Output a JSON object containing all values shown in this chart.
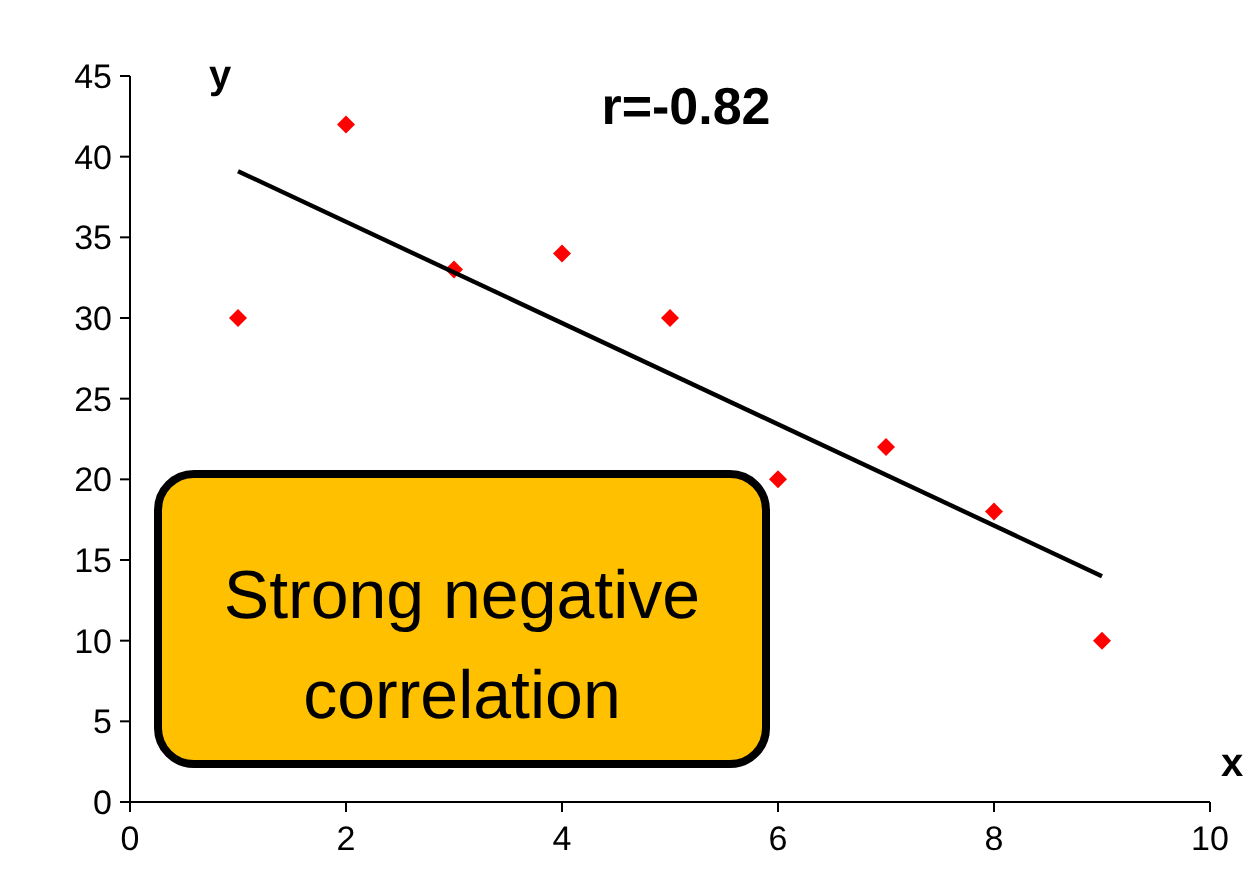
{
  "chart_data": {
    "type": "scatter",
    "xlabel": "x",
    "ylabel": "y",
    "x": [
      1,
      2,
      3,
      4,
      5,
      6,
      7,
      8,
      9
    ],
    "series": [
      {
        "color": "#ff0000",
        "marker": "diamond",
        "values": [
          30,
          42,
          33,
          34,
          30,
          20,
          22,
          18,
          10
        ]
      },
      {
        "type": "line",
        "color": "#000000",
        "x": [
          1,
          9
        ],
        "values": [
          39.1,
          14.0
        ],
        "marker": "none",
        "line_style": "solid"
      }
    ],
    "xlim": [
      0,
      10
    ],
    "xticks": [
      0,
      2,
      4,
      6,
      8,
      10
    ],
    "ylim": [
      0,
      45
    ],
    "yticks": [
      0,
      5,
      10,
      15,
      20,
      25,
      30,
      35,
      40,
      45
    ],
    "grid": false,
    "annotations": [
      "r=-0.82",
      "Strong negative correlation"
    ]
  }
}
